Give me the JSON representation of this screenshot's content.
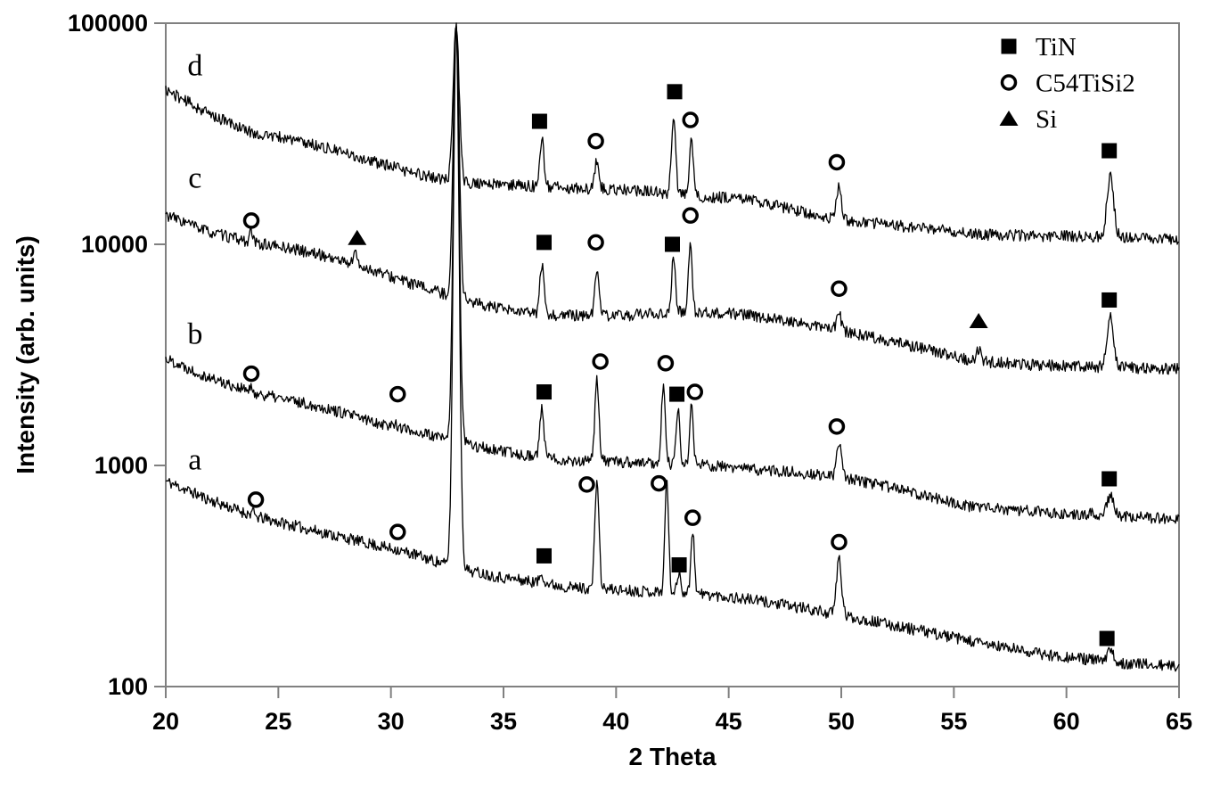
{
  "figure": {
    "background": "#ffffff",
    "axis_color": "#808080",
    "curve_color": "#000000",
    "text_color": "#000000"
  },
  "chart_data": {
    "type": "line",
    "title": "",
    "xlabel": "2 Theta",
    "ylabel": "Intensity (arb. units)",
    "x_range": [
      20,
      65
    ],
    "x_ticks": [
      20,
      25,
      30,
      35,
      40,
      45,
      50,
      55,
      60,
      65
    ],
    "y_scale": "log",
    "y_range": [
      100,
      100000
    ],
    "y_ticks": [
      100,
      1000,
      10000,
      100000
    ],
    "y_tick_labels": [
      "100",
      "1000",
      "10000",
      "100000"
    ],
    "grid": false,
    "legend_position": "top-right",
    "legend": [
      {
        "marker": "square",
        "phase": "TiN",
        "label": "TiN"
      },
      {
        "marker": "circle",
        "phase": "C54TiSi2",
        "label": "C54TiSi2"
      },
      {
        "marker": "triangle",
        "phase": "Si",
        "label": "Si"
      }
    ],
    "series": [
      {
        "name": "a",
        "label": "a",
        "label_pos": [
          21.3,
          960
        ],
        "noise": 0.026,
        "seed": 11,
        "baseline": [
          [
            20,
            850
          ],
          [
            22,
            695
          ],
          [
            24,
            586
          ],
          [
            25.5,
            540
          ],
          [
            27,
            496
          ],
          [
            29,
            444
          ],
          [
            31,
            397
          ],
          [
            33,
            342
          ],
          [
            35,
            311
          ],
          [
            38,
            281
          ],
          [
            41,
            271
          ],
          [
            44,
            261
          ],
          [
            46,
            247
          ],
          [
            48,
            229
          ],
          [
            50,
            210
          ],
          [
            52,
            192
          ],
          [
            54,
            175
          ],
          [
            56,
            158
          ],
          [
            59,
            140
          ],
          [
            62,
            129
          ],
          [
            65,
            123
          ]
        ],
        "peaks": [
          [
            23.85,
            615,
            0.07
          ],
          [
            30.2,
            420,
            0.08
          ],
          [
            32.9,
            100000,
            0.13
          ],
          [
            36.7,
            325,
            0.09
          ],
          [
            39.15,
            875,
            0.09
          ],
          [
            42.25,
            875,
            0.08
          ],
          [
            42.8,
            330,
            0.08
          ],
          [
            43.4,
            510,
            0.08
          ],
          [
            49.9,
            380,
            0.11
          ],
          [
            61.95,
            145,
            0.13
          ]
        ],
        "markers": [
          [
            "circle",
            24.0,
            700
          ],
          [
            "circle",
            30.3,
            500
          ],
          [
            "square",
            36.8,
            390
          ],
          [
            "circle",
            38.7,
            820
          ],
          [
            "circle",
            41.9,
            830
          ],
          [
            "square",
            42.8,
            355
          ],
          [
            "circle",
            43.4,
            580
          ],
          [
            "circle",
            49.9,
            450
          ],
          [
            "square",
            61.8,
            165
          ]
        ]
      },
      {
        "name": "b",
        "label": "b",
        "label_pos": [
          21.3,
          3550
        ],
        "noise": 0.026,
        "seed": 22,
        "baseline": [
          [
            20,
            3050
          ],
          [
            22,
            2480
          ],
          [
            24,
            2120
          ],
          [
            25.5,
            1970
          ],
          [
            27,
            1830
          ],
          [
            29,
            1600
          ],
          [
            31,
            1430
          ],
          [
            33,
            1270
          ],
          [
            35,
            1150
          ],
          [
            38,
            1050
          ],
          [
            41,
            1030
          ],
          [
            44,
            1000
          ],
          [
            46,
            960
          ],
          [
            48,
            930
          ],
          [
            50,
            880
          ],
          [
            52,
            805
          ],
          [
            54,
            720
          ],
          [
            56,
            645
          ],
          [
            59,
            615
          ],
          [
            62,
            597
          ],
          [
            65,
            570
          ]
        ],
        "peaks": [
          [
            23.8,
            2210,
            0.07
          ],
          [
            30.2,
            1560,
            0.08
          ],
          [
            32.9,
            100000,
            0.13
          ],
          [
            36.7,
            1800,
            0.09
          ],
          [
            39.15,
            2480,
            0.09
          ],
          [
            42.1,
            2370,
            0.08
          ],
          [
            42.75,
            1780,
            0.08
          ],
          [
            43.35,
            1880,
            0.08
          ],
          [
            49.9,
            1240,
            0.11
          ],
          [
            61.95,
            735,
            0.14
          ]
        ],
        "markers": [
          [
            "circle",
            23.8,
            2600
          ],
          [
            "circle",
            30.3,
            2100
          ],
          [
            "square",
            36.8,
            2150
          ],
          [
            "circle",
            39.3,
            2950
          ],
          [
            "circle",
            42.2,
            2900
          ],
          [
            "square",
            42.7,
            2100
          ],
          [
            "circle",
            43.5,
            2150
          ],
          [
            "circle",
            49.8,
            1500
          ],
          [
            "square",
            61.9,
            870
          ]
        ]
      },
      {
        "name": "c",
        "label": "c",
        "label_pos": [
          21.3,
          18000
        ],
        "noise": 0.026,
        "seed": 33,
        "baseline": [
          [
            20,
            13600
          ],
          [
            22,
            11300
          ],
          [
            24,
            10100
          ],
          [
            25.5,
            9600
          ],
          [
            27,
            8900
          ],
          [
            29,
            7750
          ],
          [
            31,
            6590
          ],
          [
            33,
            5700
          ],
          [
            35,
            5040
          ],
          [
            37,
            4780
          ],
          [
            40,
            4740
          ],
          [
            43,
            4950
          ],
          [
            45,
            4870
          ],
          [
            47,
            4630
          ],
          [
            50,
            4050
          ],
          [
            52,
            3700
          ],
          [
            54,
            3310
          ],
          [
            56,
            2960
          ],
          [
            59,
            2830
          ],
          [
            62,
            2780
          ],
          [
            65,
            2730
          ]
        ],
        "peaks": [
          [
            23.8,
            11400,
            0.07
          ],
          [
            28.4,
            9500,
            0.07
          ],
          [
            32.9,
            100000,
            0.13
          ],
          [
            36.7,
            8100,
            0.09
          ],
          [
            39.15,
            7900,
            0.09
          ],
          [
            42.55,
            8900,
            0.08
          ],
          [
            43.3,
            10600,
            0.08
          ],
          [
            49.9,
            4800,
            0.11
          ],
          [
            56.1,
            3340,
            0.08
          ],
          [
            61.95,
            4700,
            0.14
          ]
        ],
        "markers": [
          [
            "circle",
            23.8,
            12800
          ],
          [
            "triangle",
            28.5,
            10700
          ],
          [
            "square",
            36.8,
            10200
          ],
          [
            "circle",
            39.1,
            10200
          ],
          [
            "square",
            42.5,
            10000
          ],
          [
            "circle",
            43.3,
            13500
          ],
          [
            "circle",
            49.9,
            6300
          ],
          [
            "triangle",
            56.1,
            4500
          ],
          [
            "square",
            61.9,
            5600
          ]
        ]
      },
      {
        "name": "d",
        "label": "d",
        "label_pos": [
          21.3,
          58000
        ],
        "noise": 0.026,
        "seed": 44,
        "baseline": [
          [
            20,
            50000
          ],
          [
            22,
            38500
          ],
          [
            24,
            31500
          ],
          [
            25.5,
            30000
          ],
          [
            27,
            27500
          ],
          [
            29,
            24000
          ],
          [
            31,
            21000
          ],
          [
            33,
            19000
          ],
          [
            35,
            18600
          ],
          [
            38,
            18000
          ],
          [
            41,
            17500
          ],
          [
            44,
            16400
          ],
          [
            46,
            16000
          ],
          [
            48,
            14200
          ],
          [
            50,
            12900
          ],
          [
            52,
            12300
          ],
          [
            54,
            11700
          ],
          [
            56,
            11100
          ],
          [
            59,
            10900
          ],
          [
            62,
            10800
          ],
          [
            65,
            10500
          ]
        ],
        "peaks": [
          [
            32.9,
            100000,
            0.13
          ],
          [
            36.7,
            30000,
            0.09
          ],
          [
            39.15,
            24000,
            0.09
          ],
          [
            42.55,
            39000,
            0.09
          ],
          [
            43.35,
            29000,
            0.09
          ],
          [
            49.9,
            18000,
            0.11
          ],
          [
            61.95,
            20000,
            0.15
          ]
        ],
        "markers": [
          [
            "square",
            36.6,
            36000
          ],
          [
            "circle",
            39.1,
            29300
          ],
          [
            "square",
            42.6,
            49000
          ],
          [
            "circle",
            43.3,
            36500
          ],
          [
            "circle",
            49.8,
            23500
          ],
          [
            "square",
            61.9,
            26500
          ]
        ]
      }
    ]
  }
}
